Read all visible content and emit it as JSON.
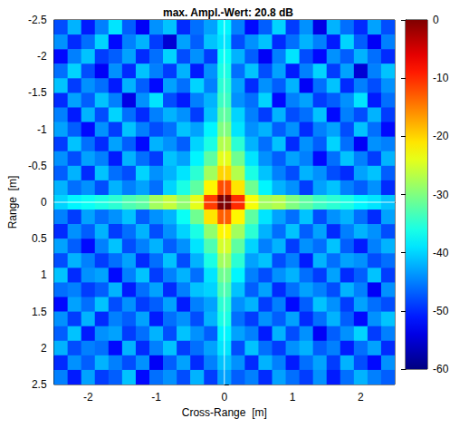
{
  "chart_data": {
    "type": "heatmap",
    "title": "max. Ampl.-Wert: 20.8 dB",
    "x_label": "Cross-Range  [m]",
    "y_label": "Range  [m]",
    "xlim": [
      -2.5,
      2.5
    ],
    "xticks": [
      -2,
      -1,
      0,
      1,
      2
    ],
    "ylim": [
      2.5,
      -2.5
    ],
    "yticks": [
      -2.5,
      -2,
      -1.5,
      -1,
      -0.5,
      0,
      0.5,
      1,
      1.5,
      2,
      2.5
    ],
    "grid": false,
    "reference_lines": {
      "x": 0,
      "y": 0
    },
    "colorbar_range": [
      -60,
      0
    ],
    "colorbar_ticks": [
      0,
      -10,
      -20,
      -30,
      -40,
      -50,
      -60
    ],
    "cells": {
      "x": [
        -2.4,
        -2.2,
        -2.0,
        -1.8,
        -1.6,
        -1.4,
        -1.2,
        -1.0,
        -0.8,
        -0.6,
        -0.4,
        -0.2,
        0,
        0.2,
        0.4,
        0.6,
        0.8,
        1.0,
        1.2,
        1.4,
        1.6,
        1.8,
        2.0,
        2.2,
        2.4
      ],
      "y": [
        -2.4,
        -2.2,
        -2.0,
        -1.8,
        -1.6,
        -1.4,
        -1.2,
        -1.0,
        -0.8,
        -0.6,
        -0.4,
        -0.2,
        0,
        0.2,
        0.4,
        0.6,
        0.8,
        1.0,
        1.2,
        1.4,
        1.6,
        1.8,
        2.0,
        2.2,
        2.4
      ],
      "values": [
        [
          -48,
          -42,
          -51,
          -45,
          -39,
          -47,
          -53,
          -44,
          -41,
          -50,
          -46,
          -43,
          -38,
          -45,
          -52,
          -47,
          -40,
          -49,
          -44,
          -54,
          -42,
          -46,
          -50,
          -43,
          -48
        ],
        [
          -44,
          -50,
          -46,
          -40,
          -52,
          -45,
          -42,
          -49,
          -55,
          -43,
          -47,
          -41,
          -39,
          -48,
          -44,
          -41,
          -50,
          -46,
          -42,
          -45,
          -51,
          -40,
          -47,
          -53,
          -45
        ],
        [
          -52,
          -45,
          -41,
          -49,
          -47,
          -43,
          -50,
          -46,
          -40,
          -48,
          -44,
          -49,
          -37,
          -42,
          -47,
          -53,
          -45,
          -39,
          -48,
          -52,
          -44,
          -47,
          -42,
          -46,
          -50
        ],
        [
          -46,
          -40,
          -48,
          -53,
          -44,
          -50,
          -41,
          -45,
          -49,
          -42,
          -51,
          -44,
          -36,
          -46,
          -41,
          -48,
          -43,
          -51,
          -45,
          -40,
          -49,
          -43,
          -55,
          -45,
          -41
        ],
        [
          -41,
          -49,
          -44,
          -46,
          -51,
          -42,
          -47,
          -52,
          -43,
          -46,
          -40,
          -45,
          -35,
          -43,
          -50,
          -44,
          -47,
          -42,
          -53,
          -46,
          -41,
          -50,
          -45,
          -48,
          -44
        ],
        [
          -50,
          -43,
          -47,
          -41,
          -45,
          -54,
          -44,
          -39,
          -48,
          -51,
          -45,
          -42,
          -34,
          -44,
          -46,
          -40,
          -52,
          -45,
          -43,
          -49,
          -47,
          -44,
          -39,
          -51,
          -46
        ],
        [
          -45,
          -51,
          -42,
          -48,
          -40,
          -46,
          -50,
          -45,
          -42,
          -44,
          -49,
          -41,
          -32,
          -40,
          -45,
          -49,
          -42,
          -48,
          -46,
          -41,
          -52,
          -45,
          -48,
          -42,
          -49
        ],
        [
          -43,
          -47,
          -52,
          -44,
          -49,
          -41,
          -45,
          -48,
          -46,
          -41,
          -43,
          -38,
          -30,
          -39,
          -44,
          -42,
          -47,
          -44,
          -50,
          -45,
          -43,
          -48,
          -41,
          -46,
          -52
        ],
        [
          -49,
          -41,
          -46,
          -50,
          -43,
          -47,
          -52,
          -42,
          -44,
          -47,
          -40,
          -36,
          -27,
          -35,
          -42,
          -46,
          -41,
          -50,
          -44,
          -47,
          -40,
          -46,
          -53,
          -44,
          -45
        ],
        [
          -44,
          -48,
          -43,
          -45,
          -51,
          -42,
          -46,
          -49,
          -41,
          -43,
          -38,
          -32,
          -24,
          -31,
          -39,
          -44,
          -47,
          -43,
          -45,
          -52,
          -46,
          -41,
          -45,
          -49,
          -42
        ],
        [
          -47,
          -42,
          -50,
          -41,
          -46,
          -48,
          -40,
          -44,
          -42,
          -39,
          -35,
          -28,
          -20,
          -27,
          -36,
          -41,
          -45,
          -48,
          -42,
          -44,
          -48,
          -50,
          -43,
          -41,
          -47
        ],
        [
          -42,
          -46,
          -44,
          -48,
          -42,
          -45,
          -43,
          -46,
          -40,
          -36,
          -32,
          -22,
          -12,
          -21,
          -31,
          -38,
          -42,
          -44,
          -49,
          -43,
          -41,
          -45,
          -47,
          -44,
          -50
        ],
        [
          -40,
          -38,
          -37,
          -36,
          -35,
          -33,
          -32,
          -28,
          -26,
          -29,
          -24,
          -11,
          0,
          -10,
          -23,
          -28,
          -27,
          -30,
          -32,
          -34,
          -35,
          -36,
          -38,
          -39,
          -41
        ],
        [
          -45,
          -49,
          -43,
          -46,
          -44,
          -41,
          -47,
          -44,
          -42,
          -37,
          -31,
          -21,
          -13,
          -22,
          -32,
          -39,
          -43,
          -46,
          -41,
          -48,
          -44,
          -42,
          -46,
          -50,
          -43
        ],
        [
          -50,
          -44,
          -47,
          -42,
          -49,
          -46,
          -42,
          -48,
          -44,
          -40,
          -36,
          -29,
          -22,
          -28,
          -35,
          -42,
          -46,
          -41,
          -47,
          -43,
          -50,
          -45,
          -42,
          -44,
          -48
        ],
        [
          -43,
          -47,
          -52,
          -45,
          -41,
          -48,
          -45,
          -42,
          -47,
          -44,
          -39,
          -33,
          -25,
          -32,
          -40,
          -45,
          -42,
          -49,
          -44,
          -46,
          -41,
          -47,
          -51,
          -45,
          -42
        ],
        [
          -48,
          -42,
          -45,
          -49,
          -46,
          -43,
          -50,
          -46,
          -41,
          -48,
          -42,
          -36,
          -28,
          -35,
          -43,
          -41,
          -48,
          -45,
          -51,
          -42,
          -46,
          -43,
          -44,
          -48,
          -46
        ],
        [
          -41,
          -50,
          -44,
          -43,
          -52,
          -45,
          -41,
          -49,
          -45,
          -42,
          -46,
          -39,
          -31,
          -38,
          -45,
          -48,
          -44,
          -42,
          -46,
          -49,
          -43,
          -50,
          -47,
          -41,
          -49
        ],
        [
          -46,
          -45,
          -49,
          -47,
          -42,
          -51,
          -46,
          -43,
          -50,
          -45,
          -41,
          -40,
          -33,
          -41,
          -47,
          -43,
          -50,
          -46,
          -43,
          -45,
          -48,
          -42,
          -45,
          -53,
          -44
        ],
        [
          -52,
          -43,
          -46,
          -41,
          -48,
          -44,
          -49,
          -47,
          -43,
          -51,
          -45,
          -43,
          -35,
          -44,
          -42,
          -49,
          -45,
          -52,
          -47,
          -41,
          -44,
          -49,
          -43,
          -46,
          -48
        ],
        [
          -44,
          -49,
          -42,
          -50,
          -45,
          -47,
          -43,
          -51,
          -46,
          -44,
          -48,
          -42,
          -36,
          -46,
          -49,
          -44,
          -47,
          -43,
          -50,
          -46,
          -42,
          -47,
          -52,
          -44,
          -41
        ],
        [
          -47,
          -41,
          -51,
          -44,
          -43,
          -49,
          -46,
          -42,
          -48,
          -41,
          -44,
          -47,
          -38,
          -43,
          -45,
          -51,
          -42,
          -48,
          -44,
          -53,
          -47,
          -44,
          -40,
          -49,
          -45
        ],
        [
          -42,
          -48,
          -45,
          -46,
          -52,
          -42,
          -50,
          -45,
          -41,
          -49,
          -46,
          -43,
          -39,
          -48,
          -41,
          -46,
          -49,
          -44,
          -42,
          -47,
          -45,
          -51,
          -46,
          -43,
          -50
        ],
        [
          -50,
          -44,
          -47,
          -42,
          -45,
          -48,
          -44,
          -53,
          -47,
          -43,
          -50,
          -45,
          -41,
          -44,
          -50,
          -42,
          -45,
          -51,
          -46,
          -43,
          -49,
          -42,
          -48,
          -52,
          -44
        ],
        [
          -45,
          -51,
          -43,
          -49,
          -47,
          -41,
          -52,
          -46,
          -44,
          -48,
          -42,
          -49,
          -43,
          -47,
          -45,
          -50,
          -43,
          -46,
          -49,
          -44,
          -51,
          -46,
          -42,
          -45,
          -47
        ]
      ]
    }
  }
}
